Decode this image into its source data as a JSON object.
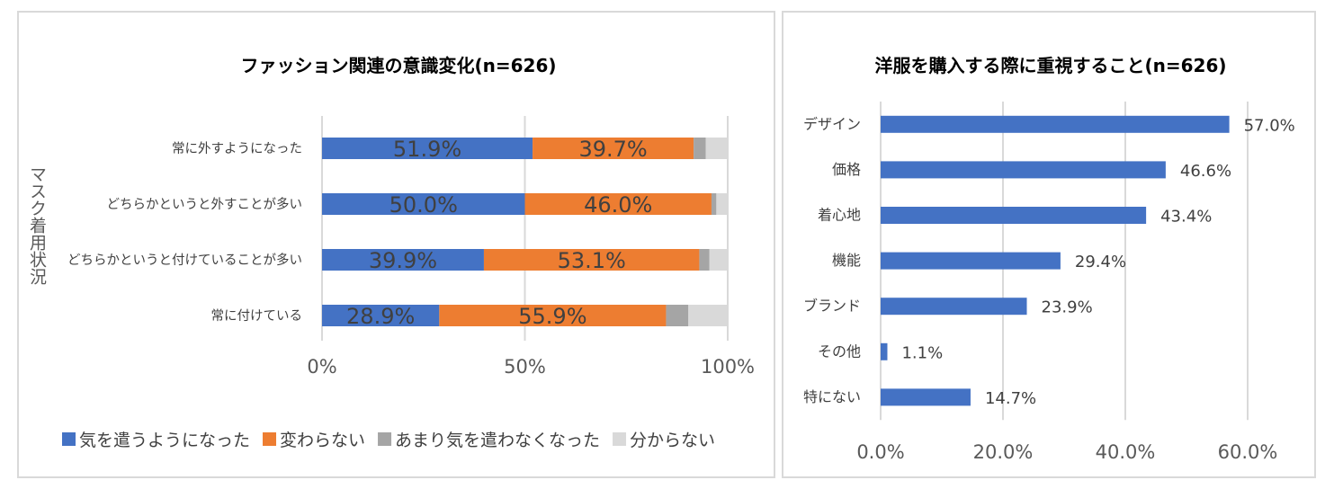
{
  "chart_data": [
    {
      "type": "stacked-bar-horizontal",
      "title": "ファッション関連の意識変化(n=626)",
      "ylabel": "マスク着用状況",
      "categories": [
        "常に外すようになった",
        "どちらかというと外すことが多い",
        "どちらかというと付けていることが多い",
        "常に付けている"
      ],
      "series": [
        {
          "name": "気を遣うようになった",
          "color": "#4472c4",
          "values": [
            51.9,
            50.0,
            39.9,
            28.9
          ],
          "labels": [
            "51.9%",
            "50.0%",
            "39.9%",
            "28.9%"
          ]
        },
        {
          "name": "変わらない",
          "color": "#ed7d31",
          "values": [
            39.7,
            46.0,
            53.1,
            55.9
          ],
          "labels": [
            "39.7%",
            "46.0%",
            "53.1%",
            "55.9%"
          ]
        },
        {
          "name": "あまり気を遣わなくなった",
          "color": "#a5a5a5",
          "values": [
            3.0,
            1.2,
            2.5,
            5.5
          ]
        },
        {
          "name": "分からない",
          "color": "#d9d9d9",
          "values": [
            5.4,
            2.8,
            4.5,
            9.7
          ]
        }
      ],
      "xlim": [
        0,
        100
      ],
      "xticks": [
        "0%",
        "50%",
        "100%"
      ],
      "grid": true,
      "legend": "bottom"
    },
    {
      "type": "bar-horizontal",
      "title": "洋服を購入する際に重視すること(n=626)",
      "categories": [
        "デザイン",
        "価格",
        "着心地",
        "機能",
        "ブランド",
        "その他",
        "特にない"
      ],
      "values": [
        57.0,
        46.6,
        43.4,
        29.4,
        23.9,
        1.1,
        14.7
      ],
      "labels": [
        "57.0%",
        "46.6%",
        "43.4%",
        "29.4%",
        "23.9%",
        "1.1%",
        "14.7%"
      ],
      "color": "#4472c4",
      "xlim": [
        0,
        60
      ],
      "xticks": [
        "0.0%",
        "20.0%",
        "40.0%",
        "60.0%"
      ],
      "grid": true
    }
  ]
}
